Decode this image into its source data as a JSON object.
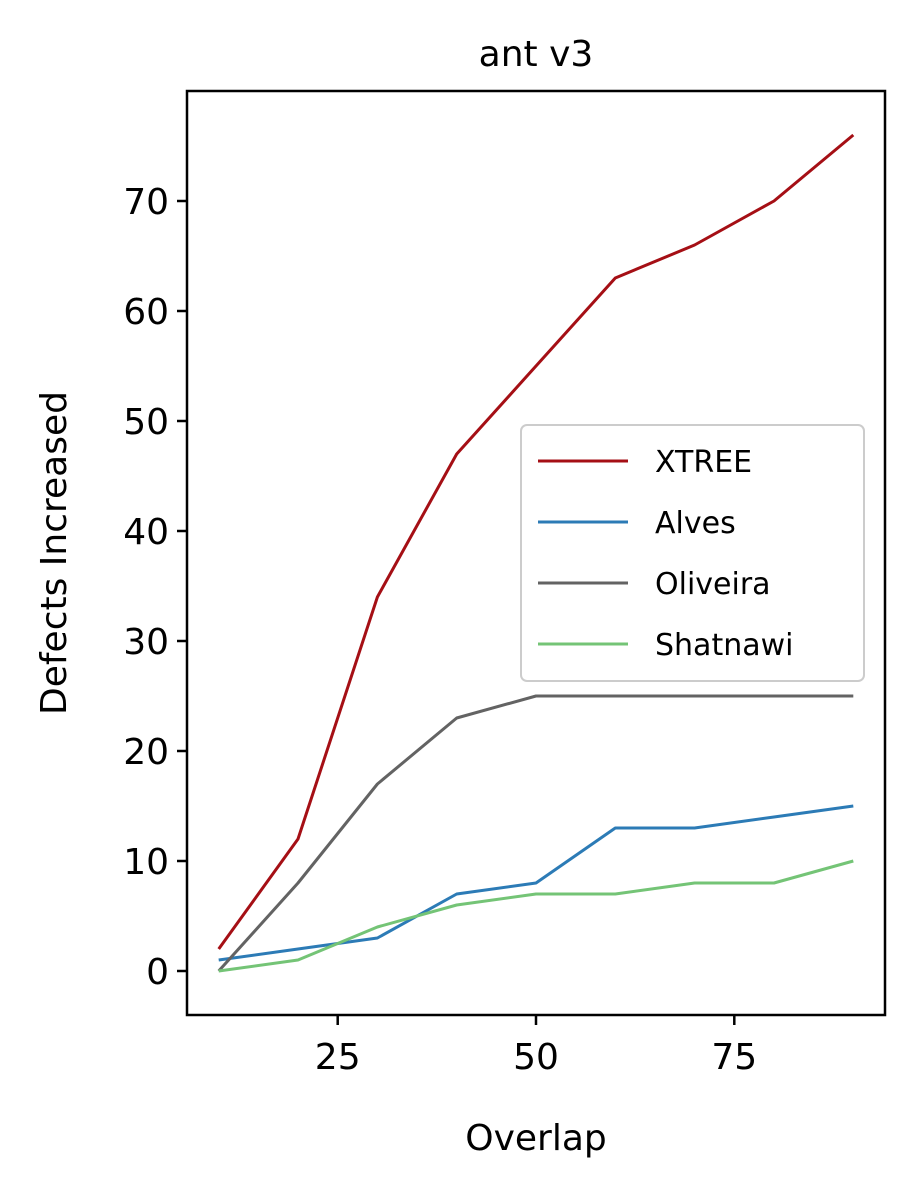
{
  "chart_data": {
    "type": "line",
    "title": "ant v3",
    "xlabel": "Overlap",
    "ylabel": "Defects Increased",
    "x": [
      10,
      20,
      30,
      40,
      50,
      60,
      70,
      80,
      90
    ],
    "xlim": [
      6,
      94
    ],
    "ylim": [
      -4,
      80
    ],
    "xticks": [
      25,
      50,
      75
    ],
    "yticks": [
      0,
      10,
      20,
      30,
      40,
      50,
      60,
      70
    ],
    "grid": false,
    "legend_position": "center-right",
    "series": [
      {
        "name": "XTREE",
        "color": "#a50f15",
        "values": [
          2,
          12,
          34,
          47,
          55,
          63,
          66,
          70,
          76
        ]
      },
      {
        "name": "Alves",
        "color": "#2c7bb6",
        "values": [
          1,
          2,
          3,
          7,
          8,
          13,
          13,
          14,
          15
        ]
      },
      {
        "name": "Oliveira",
        "color": "#636363",
        "values": [
          0,
          8,
          17,
          23,
          25,
          25,
          25,
          25,
          25
        ]
      },
      {
        "name": "Shatnawi",
        "color": "#74c476",
        "values": [
          0,
          1,
          4,
          6,
          7,
          7,
          8,
          8,
          10
        ]
      }
    ]
  }
}
